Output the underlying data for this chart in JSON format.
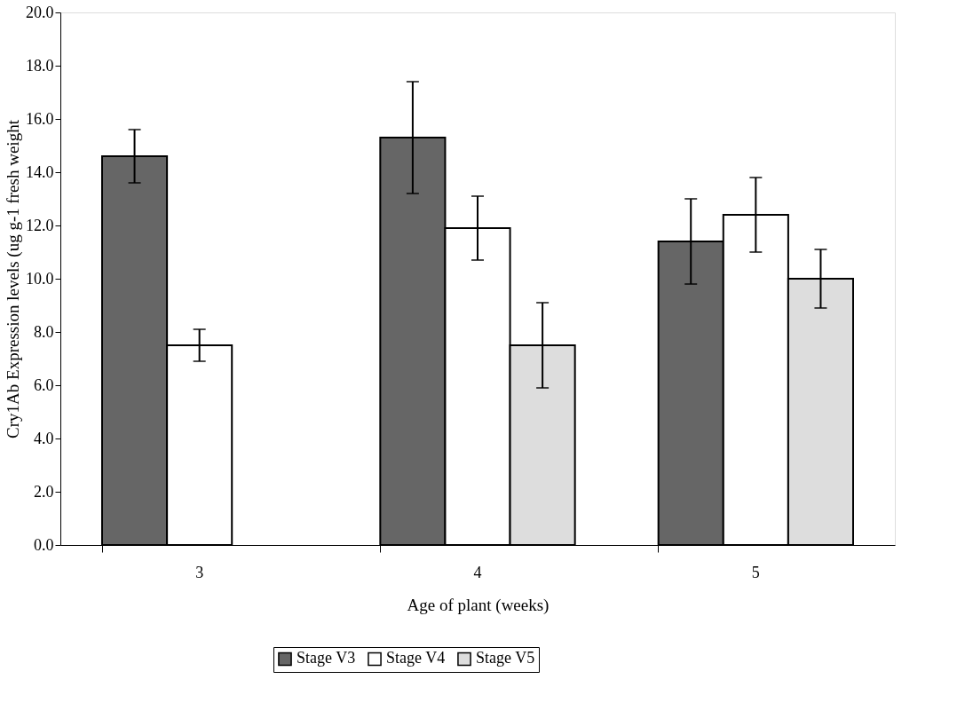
{
  "chart_data": {
    "type": "bar",
    "xlabel": "Age of plant (weeks)",
    "ylabel": "Cry1Ab Expression levels (ug g-1 fresh weight",
    "categories": [
      "3",
      "4",
      "5"
    ],
    "series": [
      {
        "name": "Stage V3",
        "color": "#666666",
        "values": [
          14.6,
          15.3,
          11.4
        ],
        "errors": [
          1.0,
          2.1,
          1.6
        ]
      },
      {
        "name": "Stage V4",
        "color": "#ffffff",
        "values": [
          7.5,
          11.9,
          12.4
        ],
        "errors": [
          0.6,
          1.2,
          1.4
        ]
      },
      {
        "name": "Stage V5",
        "color": "#dddddd",
        "values": [
          null,
          7.5,
          10.0
        ],
        "errors": [
          null,
          1.6,
          1.1
        ]
      }
    ],
    "ylim": [
      0,
      20
    ],
    "yticks": [
      {
        "value": 0,
        "label": "0.0"
      },
      {
        "value": 2,
        "label": "2.0"
      },
      {
        "value": 4,
        "label": "4.0"
      },
      {
        "value": 6,
        "label": "6.0"
      },
      {
        "value": 8,
        "label": "8.0"
      },
      {
        "value": 10,
        "label": "10.0"
      },
      {
        "value": 12,
        "label": "12.0"
      },
      {
        "value": 14,
        "label": "14.0"
      },
      {
        "value": 16,
        "label": "16.0"
      },
      {
        "value": 18,
        "label": "18.0"
      },
      {
        "value": 20,
        "label": "20.0"
      }
    ],
    "grid": false,
    "legend": "bottom"
  }
}
